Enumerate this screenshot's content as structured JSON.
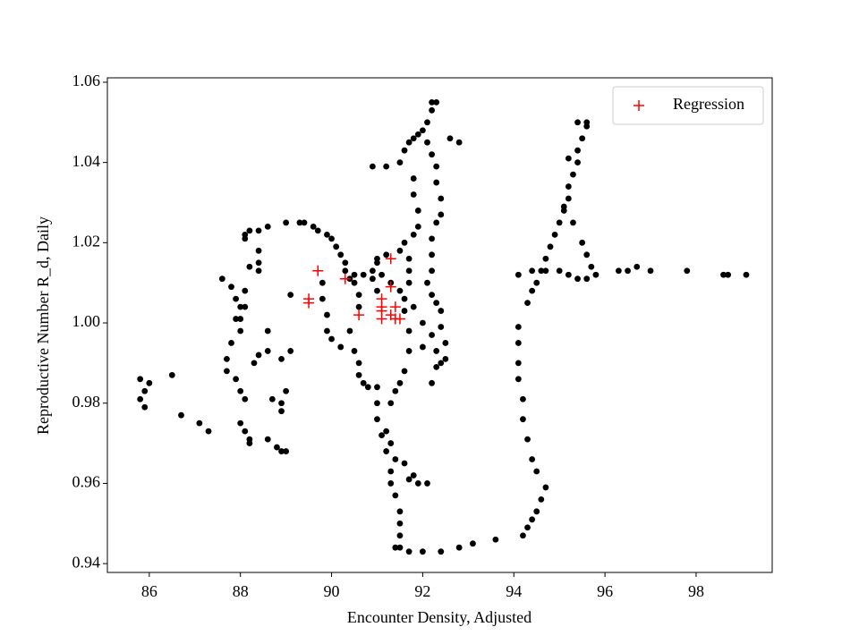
{
  "chart_data": {
    "type": "scatter",
    "xlabel": "Encounter Density, Adjusted",
    "ylabel": "Reproductive Number R_d, Daily",
    "xlim": [
      85.08,
      99.67
    ],
    "ylim": [
      0.9378,
      1.0611
    ],
    "xticks": [
      86,
      88,
      90,
      92,
      94,
      96,
      98
    ],
    "yticks": [
      0.94,
      0.96,
      0.98,
      {
        "value": 1,
        "label": "1.00"
      },
      1.02,
      1.04,
      1.06
    ],
    "legend": "upper right",
    "series": [
      {
        "color": "#000000",
        "marker": "dot",
        "x": [
          85.8,
          85.8,
          85.9,
          85.9,
          86.0,
          86.5,
          86.7,
          87.1,
          87.3,
          87.6,
          87.8,
          87.9,
          88.0,
          87.9,
          88.0,
          87.8,
          87.7,
          87.7,
          87.9,
          88.0,
          88.1,
          88.0,
          88.1,
          88.2,
          88.2,
          88.4,
          88.3,
          88.6,
          88.6,
          88.1,
          88.1,
          88.2,
          88.4,
          88.6,
          88.4,
          88.4,
          88.4,
          88.2,
          88.1,
          88.1,
          88.0,
          89.0,
          89.3,
          89.4,
          89.6,
          89.7,
          89.9,
          90.0,
          90.1,
          90.2,
          90.3,
          90.3,
          90.4,
          90.5,
          90.6,
          90.6,
          89.1,
          89.1,
          88.9,
          89.0,
          88.9,
          88.9,
          88.7,
          88.6,
          88.8,
          88.9,
          89.0,
          89.8,
          89.8,
          89.9,
          89.9,
          90.0,
          90.2,
          90.4,
          90.5,
          90.6,
          90.6,
          90.7,
          90.8,
          91.0,
          91.0,
          91.0,
          91.1,
          91.2,
          91.3,
          91.3,
          91.4,
          91.5,
          91.5,
          91.5,
          91.5,
          91.4,
          91.7,
          92.0,
          92.4,
          92.8,
          93.1,
          93.6,
          94.2,
          94.3,
          94.4,
          94.5,
          94.6,
          94.7,
          94.5,
          94.4,
          94.3,
          94.2,
          94.2,
          94.1,
          94.1,
          94.1,
          94.1,
          94.3,
          94.4,
          94.5,
          94.6,
          94.7,
          94.8,
          94.9,
          95.0,
          95.1,
          95.2,
          95.2,
          95.3,
          95.4,
          95.4,
          95.5,
          95.6,
          95.4,
          95.6,
          95.2,
          95.1,
          95.3,
          95.5,
          95.6,
          95.7,
          95.8,
          95.6,
          95.4,
          95.2,
          95.0,
          94.7,
          94.4,
          94.1,
          96.3,
          96.5,
          96.7,
          97.0,
          97.8,
          98.6,
          98.7,
          99.1,
          90.9,
          91.2,
          91.5,
          91.6,
          91.7,
          91.8,
          91.9,
          92.0,
          92.1,
          92.2,
          92.3,
          92.2,
          92.1,
          92.2,
          92.3,
          92.3,
          92.4,
          92.4,
          92.3,
          92.2,
          92.2,
          92.2,
          92.1,
          92.2,
          92.3,
          92.4,
          92.4,
          92.5,
          92.5,
          92.4,
          92.3,
          92.2,
          92.0,
          91.8,
          91.6,
          91.5,
          91.3,
          91.1,
          91.0,
          91.0,
          91.2,
          91.5,
          91.6,
          91.8,
          91.9,
          91.9,
          91.8,
          91.8,
          92.6,
          92.8,
          91.7,
          91.7,
          91.7,
          91.6,
          91.7,
          91.7,
          91.6,
          91.5,
          91.4,
          91.3,
          91.6,
          91.7,
          91.9,
          92.1,
          91.8,
          91.4,
          91.3,
          91.2,
          92.0,
          92.2,
          92.3,
          90.9,
          90.9,
          91.0,
          90.7,
          90.5
        ],
        "values": [
          0.986,
          0.981,
          0.983,
          0.979,
          0.985,
          0.987,
          0.977,
          0.975,
          0.973,
          1.011,
          1.009,
          1.006,
          1.004,
          1.001,
          0.998,
          0.995,
          0.991,
          0.988,
          0.986,
          0.983,
          0.981,
          0.975,
          0.973,
          0.97,
          0.971,
          0.992,
          0.99,
          0.993,
          0.998,
          1.022,
          1.021,
          1.023,
          1.023,
          1.024,
          1.018,
          1.015,
          1.013,
          1.014,
          1.008,
          1.004,
          1.001,
          1.025,
          1.025,
          1.025,
          1.024,
          1.023,
          1.022,
          1.021,
          1.019,
          1.017,
          1.015,
          1.013,
          1.011,
          1.01,
          1.007,
          1.004,
          1.007,
          0.993,
          0.991,
          0.983,
          0.98,
          0.978,
          0.981,
          0.971,
          0.969,
          0.968,
          0.968,
          1.01,
          1.006,
          1.002,
          0.998,
          0.996,
          0.994,
          0.998,
          0.993,
          0.99,
          0.987,
          0.985,
          0.984,
          0.984,
          0.98,
          0.976,
          0.972,
          0.968,
          0.963,
          0.96,
          0.957,
          0.953,
          0.95,
          0.947,
          0.944,
          0.944,
          0.943,
          0.943,
          0.943,
          0.944,
          0.945,
          0.946,
          0.947,
          0.949,
          0.951,
          0.953,
          0.956,
          0.959,
          0.963,
          0.966,
          0.971,
          0.976,
          0.981,
          0.986,
          0.99,
          0.995,
          0.999,
          1.005,
          1.008,
          1.01,
          1.013,
          1.016,
          1.019,
          1.022,
          1.025,
          1.028,
          1.031,
          1.034,
          1.037,
          1.04,
          1.043,
          1.046,
          1.049,
          1.05,
          1.05,
          1.041,
          1.029,
          1.025,
          1.02,
          1.017,
          1.014,
          1.012,
          1.011,
          1.011,
          1.012,
          1.013,
          1.013,
          1.013,
          1.012,
          1.013,
          1.013,
          1.014,
          1.013,
          1.013,
          1.012,
          1.012,
          1.012,
          1.039,
          1.039,
          1.04,
          1.043,
          1.045,
          1.046,
          1.047,
          1.048,
          1.05,
          1.055,
          1.055,
          1.053,
          1.045,
          1.042,
          1.039,
          1.035,
          1.031,
          1.027,
          1.025,
          1.021,
          1.017,
          1.013,
          1.01,
          1.007,
          1.005,
          1.003,
          0.999,
          0.995,
          0.991,
          0.99,
          0.993,
          0.997,
          1.0,
          1.004,
          1.006,
          1.008,
          1.01,
          1.012,
          1.015,
          1.016,
          1.017,
          1.018,
          1.02,
          1.022,
          1.024,
          1.028,
          1.032,
          1.036,
          1.046,
          1.045,
          1.016,
          1.013,
          1.01,
          1.003,
          0.998,
          0.993,
          0.988,
          0.985,
          0.983,
          0.98,
          0.965,
          0.961,
          0.96,
          0.96,
          0.962,
          0.966,
          0.97,
          0.973,
          0.994,
          0.985,
          0.989,
          1.013,
          1.011,
          1.008,
          1.012,
          1.012
        ]
      },
      {
        "name": "Regression",
        "color": "#ff0000",
        "marker": "plus",
        "x": [
          89.5,
          89.5,
          89.7,
          90.3,
          90.6,
          91.1,
          91.1,
          91.1,
          91.1,
          91.3,
          91.3,
          91.3,
          91.4,
          91.4,
          91.5
        ],
        "values": [
          1.005,
          1.006,
          1.013,
          1.011,
          1.002,
          1.006,
          1.004,
          1.003,
          1.001,
          1.009,
          1.016,
          1.002,
          1.001,
          1.004,
          1.001
        ]
      }
    ]
  }
}
